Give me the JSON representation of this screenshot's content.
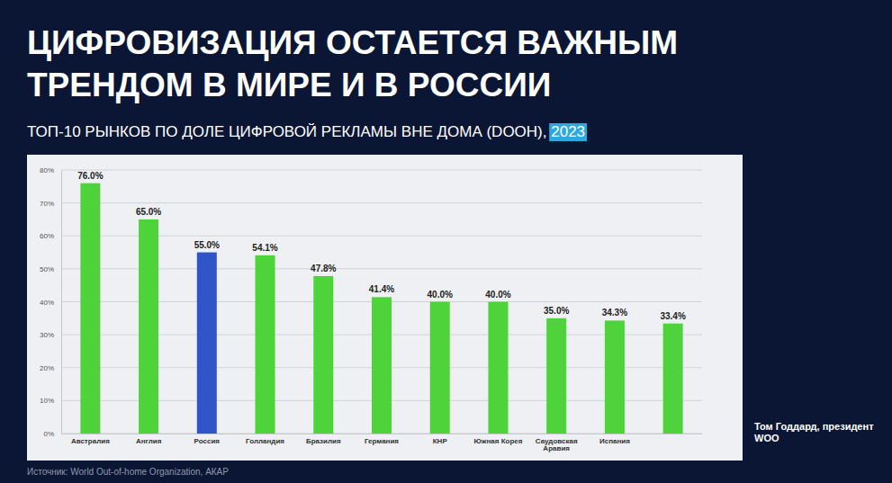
{
  "chart_data": {
    "type": "bar",
    "title": "ЦИФРОВИЗАЦИЯ ОСТАЕТСЯ ВАЖНЫМ ТРЕНДОМ В МИРЕ И В РОССИИ",
    "subtitle": "ТОП-10 РЫНКОВ ПО ДОЛЕ ЦИФРОВОЙ РЕКЛАМЫ ВНЕ ДОМА (DOOH), 2023",
    "categories": [
      "Австралия",
      "Англия",
      "Россия",
      "Голландия",
      "Бразилия",
      "Германия",
      "КНР",
      "Южная Корея",
      "Саудовская Аравия",
      "Испания",
      null
    ],
    "values": [
      76.0,
      65.0,
      55.0,
      54.1,
      47.8,
      41.4,
      40.0,
      40.0,
      35.0,
      34.3,
      33.4
    ],
    "value_labels": [
      "76.0%",
      "65.0%",
      "55.0%",
      "54.1%",
      "47.8%",
      "41.4%",
      "40.0%",
      "40.0%",
      "35.0%",
      "34.3%",
      "33.4%"
    ],
    "colors": [
      "#4fd33a",
      "#4fd33a",
      "#2f55c9",
      "#4fd33a",
      "#4fd33a",
      "#4fd33a",
      "#4fd33a",
      "#4fd33a",
      "#4fd33a",
      "#4fd33a",
      "#4fd33a"
    ],
    "ylim": [
      0,
      80
    ],
    "yticks": [
      {
        "value": 0,
        "label": "0%"
      },
      {
        "value": 10,
        "label": "10%"
      },
      {
        "value": 20,
        "label": "20%"
      },
      {
        "value": 30,
        "label": "30%"
      },
      {
        "value": 40,
        "label": "40%"
      },
      {
        "value": 50,
        "label": "50%"
      },
      {
        "value": 60,
        "label": "60%"
      },
      {
        "value": 70,
        "label": "70%"
      },
      {
        "value": 80,
        "label": "80%"
      }
    ],
    "grid": true,
    "data_labels": true,
    "annotations": [
      "Том Годдард, президент WOO",
      "Источник: World Out-of-home Organization, АКАР"
    ]
  }
}
